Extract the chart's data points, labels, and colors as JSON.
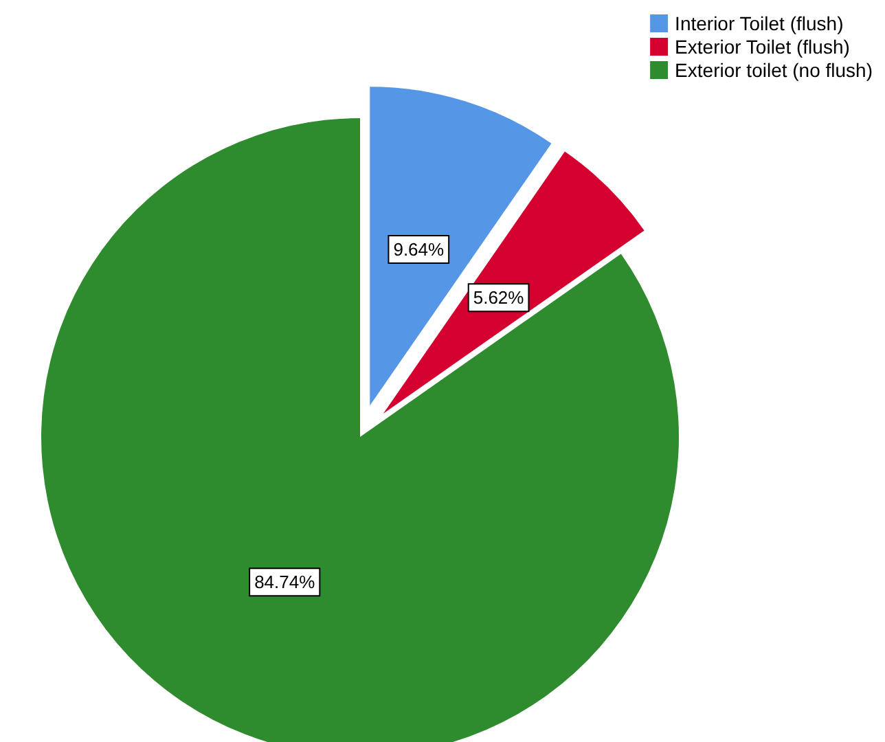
{
  "chart_data": {
    "type": "pie",
    "categories": [
      "Interior Toilet (flush)",
      "Exterior Toilet (flush)",
      "Exterior toilet (no flush)"
    ],
    "values": [
      9.64,
      5.62,
      84.74
    ],
    "value_labels": [
      "9.64%",
      "5.62%",
      "84.74%"
    ],
    "colors": [
      "#5596e6",
      "#d4002f",
      "#2e8b2e"
    ],
    "legend": "top right"
  }
}
